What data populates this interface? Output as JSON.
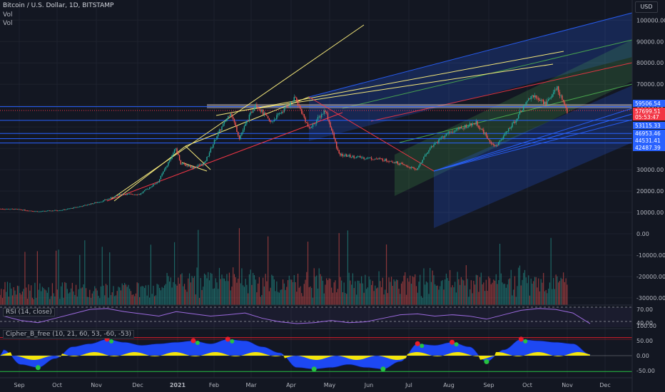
{
  "header": {
    "symbol_line": "Bitcoin / U.S. Dollar, 1D, BITSTAMP",
    "overlay_1": "Vol",
    "overlay_2": "Vol",
    "currency_button": "USD"
  },
  "panes": {
    "rsi_label": "RSI (14, close)",
    "cipher_label": "Cipher_B_free (10, 21, 60, 53, -60, -53)"
  },
  "chart_data": {
    "type": "candlestick",
    "price_axis_ticks": [
      "100000.00",
      "90000.00",
      "80000.00",
      "70000.00",
      "60000.00",
      "50000.00",
      "40000.00",
      "30000.00",
      "20000.00",
      "10000.00",
      "0.00",
      "-10000.00",
      "-20000.00",
      "-30000.00"
    ],
    "rsi_axis_ticks": [
      "70.00",
      "40.00"
    ],
    "cipher_axis_ticks": [
      "100.00",
      "50.00",
      "0.00",
      "-50.00"
    ],
    "x_tick_labels": [
      "Sep",
      "Oct",
      "Nov",
      "Dec",
      "2021",
      "Feb",
      "Mar",
      "Apr",
      "May",
      "Jun",
      "Jul",
      "Aug",
      "Sep",
      "Oct",
      "Nov",
      "Dec"
    ],
    "ylim": [
      -30000,
      100000
    ],
    "price_path": [
      [
        "Aug 20",
        11700
      ],
      [
        "Sep 01",
        11500
      ],
      [
        "Sep 20",
        10400
      ],
      [
        "Oct 10",
        11200
      ],
      [
        "Oct 25",
        13000
      ],
      [
        "Nov 10",
        15300
      ],
      [
        "Nov 25",
        18500
      ],
      [
        "Dec 10",
        18500
      ],
      [
        "Dec 25",
        24500
      ],
      [
        "Jan 08",
        40000
      ],
      [
        "Jan 12",
        33000
      ],
      [
        "Jan 22",
        31000
      ],
      [
        "Jan 31",
        33000
      ],
      [
        "Feb 10",
        46000
      ],
      [
        "Feb 21",
        57000
      ],
      [
        "Feb 28",
        45000
      ],
      [
        "Mar 13",
        61000
      ],
      [
        "Mar 25",
        52000
      ],
      [
        "Apr 14",
        63500
      ],
      [
        "Apr 25",
        49000
      ],
      [
        "May 08",
        58000
      ],
      [
        "May 19",
        37000
      ],
      [
        "Jun 01",
        36000
      ],
      [
        "Jun 20",
        35000
      ],
      [
        "Jul 01",
        34000
      ],
      [
        "Jul 20",
        30000
      ],
      [
        "Aug 01",
        41000
      ],
      [
        "Aug 14",
        47000
      ],
      [
        "Sep 06",
        52000
      ],
      [
        "Sep 21",
        40500
      ],
      [
        "Oct 05",
        51000
      ],
      [
        "Oct 20",
        65000
      ],
      [
        "Nov 01",
        61000
      ],
      [
        "Nov 10",
        68500
      ],
      [
        "Nov 18",
        57000
      ]
    ],
    "price_labels": [
      {
        "text": "59506.54",
        "color": "#2962ff"
      },
      {
        "text": "57699.51",
        "color": "#f23645"
      },
      {
        "text": "05:53:47",
        "color": "#f23645"
      },
      {
        "text": "53115.33",
        "color": "#2962ff"
      },
      {
        "text": "46953.46",
        "color": "#2962ff"
      },
      {
        "text": "44531.41",
        "color": "#2962ff"
      },
      {
        "text": "42487.39",
        "color": "#2962ff"
      }
    ],
    "horizontal_levels": [
      59506.54,
      53115.33,
      46953.46,
      44531.41,
      42487.39
    ],
    "rsi_series": [
      55,
      45,
      40,
      50,
      60,
      70,
      72,
      65,
      60,
      55,
      65,
      60,
      55,
      58,
      62,
      50,
      42,
      38,
      40,
      45,
      40,
      42,
      50,
      58,
      60,
      55,
      58,
      55,
      48,
      58,
      68,
      72,
      70,
      62,
      38
    ],
    "cipher_series": [
      20,
      -30,
      -40,
      -10,
      30,
      40,
      55,
      45,
      35,
      40,
      45,
      50,
      40,
      55,
      50,
      30,
      10,
      -40,
      -45,
      -40,
      -30,
      -40,
      -45,
      -20,
      40,
      35,
      45,
      30,
      -20,
      20,
      55,
      50,
      45,
      40,
      5
    ],
    "colors": {
      "up": "#26a69a",
      "down": "#ef5350",
      "channel_blue": "#2962ff",
      "channel_green": "#4caf50",
      "channel_red": "#f23645",
      "trendline_yellow": "#f5e87a",
      "resistance_band": "#b2a7a7",
      "cipher_wave": "#1e4bff",
      "cipher_mf": "#ffee00",
      "cipher_green_dot": "#26c242",
      "cipher_red_dot": "#e81e2a"
    }
  }
}
